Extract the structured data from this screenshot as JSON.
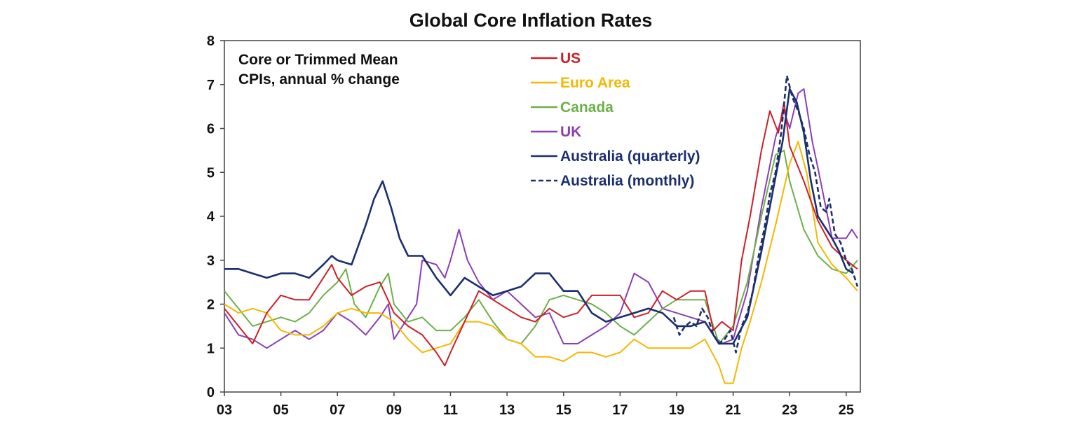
{
  "chart_data": {
    "type": "line",
    "title": "Global Core Inflation Rates",
    "note": [
      "Core or Trimmed Mean",
      "CPIs, annual % change"
    ],
    "xlabel": "",
    "ylabel": "",
    "xlim": [
      2003,
      2025.5
    ],
    "ylim": [
      0,
      8
    ],
    "yticks": [
      0,
      1,
      2,
      3,
      4,
      5,
      6,
      7,
      8
    ],
    "xticks": [
      2003,
      2005,
      2007,
      2009,
      2011,
      2013,
      2015,
      2017,
      2019,
      2021,
      2023,
      2025
    ],
    "xtick_labels": [
      "03",
      "05",
      "07",
      "09",
      "11",
      "13",
      "15",
      "17",
      "19",
      "21",
      "23",
      "25"
    ],
    "grid": false,
    "legend_position": "top-center",
    "series": [
      {
        "name": "US",
        "color": "#cc1f27",
        "dash": "solid",
        "points": [
          [
            2003.0,
            1.9
          ],
          [
            2003.5,
            1.5
          ],
          [
            2004.0,
            1.1
          ],
          [
            2004.5,
            1.8
          ],
          [
            2005.0,
            2.2
          ],
          [
            2005.5,
            2.1
          ],
          [
            2006.0,
            2.1
          ],
          [
            2006.5,
            2.6
          ],
          [
            2006.8,
            2.9
          ],
          [
            2007.0,
            2.6
          ],
          [
            2007.5,
            2.2
          ],
          [
            2008.0,
            2.4
          ],
          [
            2008.5,
            2.5
          ],
          [
            2009.0,
            1.8
          ],
          [
            2009.5,
            1.5
          ],
          [
            2010.0,
            1.3
          ],
          [
            2010.5,
            0.9
          ],
          [
            2010.8,
            0.6
          ],
          [
            2011.0,
            0.9
          ],
          [
            2011.5,
            1.6
          ],
          [
            2012.0,
            2.3
          ],
          [
            2012.5,
            2.1
          ],
          [
            2013.0,
            1.9
          ],
          [
            2013.5,
            1.7
          ],
          [
            2014.0,
            1.6
          ],
          [
            2014.5,
            1.9
          ],
          [
            2015.0,
            1.7
          ],
          [
            2015.5,
            1.8
          ],
          [
            2016.0,
            2.2
          ],
          [
            2016.5,
            2.2
          ],
          [
            2017.0,
            2.2
          ],
          [
            2017.5,
            1.7
          ],
          [
            2018.0,
            1.8
          ],
          [
            2018.5,
            2.3
          ],
          [
            2019.0,
            2.1
          ],
          [
            2019.5,
            2.3
          ],
          [
            2020.0,
            2.3
          ],
          [
            2020.3,
            1.4
          ],
          [
            2020.6,
            1.6
          ],
          [
            2021.0,
            1.4
          ],
          [
            2021.3,
            3.0
          ],
          [
            2021.6,
            4.0
          ],
          [
            2022.0,
            5.5
          ],
          [
            2022.3,
            6.4
          ],
          [
            2022.6,
            5.9
          ],
          [
            2022.8,
            6.6
          ],
          [
            2023.0,
            5.6
          ],
          [
            2023.5,
            4.8
          ],
          [
            2024.0,
            3.9
          ],
          [
            2024.5,
            3.3
          ],
          [
            2025.0,
            3.0
          ],
          [
            2025.4,
            2.8
          ]
        ]
      },
      {
        "name": "Euro Area",
        "color": "#f5b700",
        "dash": "solid",
        "points": [
          [
            2003.0,
            2.0
          ],
          [
            2003.5,
            1.8
          ],
          [
            2004.0,
            1.9
          ],
          [
            2004.5,
            1.8
          ],
          [
            2005.0,
            1.4
          ],
          [
            2005.5,
            1.3
          ],
          [
            2006.0,
            1.3
          ],
          [
            2006.5,
            1.5
          ],
          [
            2007.0,
            1.8
          ],
          [
            2007.5,
            1.9
          ],
          [
            2008.0,
            1.8
          ],
          [
            2008.5,
            1.8
          ],
          [
            2009.0,
            1.6
          ],
          [
            2009.5,
            1.2
          ],
          [
            2010.0,
            0.9
          ],
          [
            2010.5,
            1.0
          ],
          [
            2011.0,
            1.1
          ],
          [
            2011.5,
            1.6
          ],
          [
            2012.0,
            1.6
          ],
          [
            2012.5,
            1.5
          ],
          [
            2013.0,
            1.2
          ],
          [
            2013.5,
            1.1
          ],
          [
            2014.0,
            0.8
          ],
          [
            2014.5,
            0.8
          ],
          [
            2015.0,
            0.7
          ],
          [
            2015.5,
            0.9
          ],
          [
            2016.0,
            0.9
          ],
          [
            2016.5,
            0.8
          ],
          [
            2017.0,
            0.9
          ],
          [
            2017.5,
            1.2
          ],
          [
            2018.0,
            1.0
          ],
          [
            2018.5,
            1.0
          ],
          [
            2019.0,
            1.0
          ],
          [
            2019.5,
            1.0
          ],
          [
            2020.0,
            1.2
          ],
          [
            2020.5,
            0.6
          ],
          [
            2020.7,
            0.2
          ],
          [
            2021.0,
            0.2
          ],
          [
            2021.3,
            1.0
          ],
          [
            2021.6,
            1.6
          ],
          [
            2022.0,
            2.5
          ],
          [
            2022.5,
            3.8
          ],
          [
            2023.0,
            5.2
          ],
          [
            2023.3,
            5.7
          ],
          [
            2023.6,
            5.0
          ],
          [
            2024.0,
            3.4
          ],
          [
            2024.5,
            2.9
          ],
          [
            2025.0,
            2.6
          ],
          [
            2025.4,
            2.3
          ]
        ]
      },
      {
        "name": "Canada",
        "color": "#6eb048",
        "dash": "solid",
        "points": [
          [
            2003.0,
            2.3
          ],
          [
            2003.5,
            1.9
          ],
          [
            2004.0,
            1.5
          ],
          [
            2004.5,
            1.6
          ],
          [
            2005.0,
            1.7
          ],
          [
            2005.5,
            1.6
          ],
          [
            2006.0,
            1.8
          ],
          [
            2006.5,
            2.2
          ],
          [
            2007.0,
            2.5
          ],
          [
            2007.3,
            2.8
          ],
          [
            2007.6,
            2.0
          ],
          [
            2008.0,
            1.7
          ],
          [
            2008.5,
            2.4
          ],
          [
            2008.8,
            2.7
          ],
          [
            2009.0,
            2.0
          ],
          [
            2009.5,
            1.6
          ],
          [
            2010.0,
            1.7
          ],
          [
            2010.5,
            1.4
          ],
          [
            2011.0,
            1.4
          ],
          [
            2011.5,
            1.7
          ],
          [
            2012.0,
            2.1
          ],
          [
            2012.5,
            1.6
          ],
          [
            2013.0,
            1.2
          ],
          [
            2013.5,
            1.1
          ],
          [
            2014.0,
            1.5
          ],
          [
            2014.5,
            2.1
          ],
          [
            2015.0,
            2.2
          ],
          [
            2015.5,
            2.1
          ],
          [
            2016.0,
            2.0
          ],
          [
            2016.5,
            1.8
          ],
          [
            2017.0,
            1.5
          ],
          [
            2017.5,
            1.3
          ],
          [
            2018.0,
            1.6
          ],
          [
            2018.5,
            1.9
          ],
          [
            2019.0,
            2.1
          ],
          [
            2019.5,
            2.1
          ],
          [
            2020.0,
            2.1
          ],
          [
            2020.5,
            1.1
          ],
          [
            2021.0,
            1.5
          ],
          [
            2021.5,
            2.5
          ],
          [
            2022.0,
            4.0
          ],
          [
            2022.5,
            5.4
          ],
          [
            2022.8,
            5.5
          ],
          [
            2023.0,
            4.8
          ],
          [
            2023.5,
            3.7
          ],
          [
            2024.0,
            3.1
          ],
          [
            2024.5,
            2.8
          ],
          [
            2025.0,
            2.7
          ],
          [
            2025.4,
            3.0
          ]
        ]
      },
      {
        "name": "UK",
        "color": "#8b3fb5",
        "dash": "solid",
        "points": [
          [
            2003.0,
            1.8
          ],
          [
            2003.5,
            1.3
          ],
          [
            2004.0,
            1.2
          ],
          [
            2004.5,
            1.0
          ],
          [
            2005.0,
            1.2
          ],
          [
            2005.5,
            1.4
          ],
          [
            2006.0,
            1.2
          ],
          [
            2006.5,
            1.4
          ],
          [
            2007.0,
            1.8
          ],
          [
            2007.5,
            1.6
          ],
          [
            2008.0,
            1.3
          ],
          [
            2008.5,
            1.7
          ],
          [
            2008.8,
            2.0
          ],
          [
            2009.0,
            1.2
          ],
          [
            2009.5,
            1.7
          ],
          [
            2009.8,
            2.0
          ],
          [
            2010.0,
            3.0
          ],
          [
            2010.5,
            2.9
          ],
          [
            2010.8,
            2.6
          ],
          [
            2011.0,
            3.0
          ],
          [
            2011.3,
            3.7
          ],
          [
            2011.6,
            3.0
          ],
          [
            2012.0,
            2.5
          ],
          [
            2012.5,
            2.1
          ],
          [
            2013.0,
            2.3
          ],
          [
            2013.5,
            2.0
          ],
          [
            2014.0,
            1.7
          ],
          [
            2014.5,
            1.8
          ],
          [
            2015.0,
            1.1
          ],
          [
            2015.5,
            1.1
          ],
          [
            2016.0,
            1.3
          ],
          [
            2016.5,
            1.5
          ],
          [
            2017.0,
            1.8
          ],
          [
            2017.5,
            2.7
          ],
          [
            2018.0,
            2.5
          ],
          [
            2018.5,
            1.9
          ],
          [
            2019.0,
            1.8
          ],
          [
            2019.5,
            1.7
          ],
          [
            2020.0,
            1.6
          ],
          [
            2020.3,
            1.3
          ],
          [
            2020.6,
            1.1
          ],
          [
            2021.0,
            1.2
          ],
          [
            2021.5,
            2.3
          ],
          [
            2022.0,
            4.2
          ],
          [
            2022.5,
            5.8
          ],
          [
            2022.8,
            6.4
          ],
          [
            2023.0,
            6.0
          ],
          [
            2023.3,
            6.8
          ],
          [
            2023.5,
            6.9
          ],
          [
            2023.8,
            5.7
          ],
          [
            2024.0,
            5.1
          ],
          [
            2024.5,
            3.5
          ],
          [
            2025.0,
            3.5
          ],
          [
            2025.2,
            3.7
          ],
          [
            2025.4,
            3.5
          ]
        ]
      },
      {
        "name": "Australia (quarterly)",
        "color": "#1b2f6e",
        "dash": "solid",
        "points": [
          [
            2003.0,
            2.8
          ],
          [
            2003.5,
            2.8
          ],
          [
            2004.0,
            2.7
          ],
          [
            2004.5,
            2.6
          ],
          [
            2005.0,
            2.7
          ],
          [
            2005.5,
            2.7
          ],
          [
            2006.0,
            2.6
          ],
          [
            2006.5,
            2.9
          ],
          [
            2006.8,
            3.1
          ],
          [
            2007.0,
            3.0
          ],
          [
            2007.5,
            2.9
          ],
          [
            2008.0,
            3.8
          ],
          [
            2008.3,
            4.4
          ],
          [
            2008.6,
            4.8
          ],
          [
            2008.9,
            4.2
          ],
          [
            2009.2,
            3.5
          ],
          [
            2009.5,
            3.1
          ],
          [
            2010.0,
            3.1
          ],
          [
            2010.5,
            2.6
          ],
          [
            2011.0,
            2.2
          ],
          [
            2011.5,
            2.6
          ],
          [
            2012.0,
            2.4
          ],
          [
            2012.5,
            2.2
          ],
          [
            2013.0,
            2.3
          ],
          [
            2013.5,
            2.4
          ],
          [
            2014.0,
            2.7
          ],
          [
            2014.5,
            2.7
          ],
          [
            2015.0,
            2.3
          ],
          [
            2015.5,
            2.3
          ],
          [
            2016.0,
            1.8
          ],
          [
            2016.5,
            1.6
          ],
          [
            2017.0,
            1.7
          ],
          [
            2017.5,
            1.8
          ],
          [
            2018.0,
            1.9
          ],
          [
            2018.5,
            1.8
          ],
          [
            2019.0,
            1.5
          ],
          [
            2019.5,
            1.5
          ],
          [
            2020.0,
            1.6
          ],
          [
            2020.5,
            1.1
          ],
          [
            2021.0,
            1.1
          ],
          [
            2021.5,
            1.7
          ],
          [
            2022.0,
            3.2
          ],
          [
            2022.5,
            4.9
          ],
          [
            2022.75,
            5.7
          ],
          [
            2023.0,
            6.9
          ],
          [
            2023.25,
            6.6
          ],
          [
            2023.5,
            5.9
          ],
          [
            2023.75,
            4.8
          ],
          [
            2024.0,
            4.0
          ],
          [
            2024.5,
            3.5
          ],
          [
            2024.75,
            3.2
          ],
          [
            2025.0,
            2.8
          ],
          [
            2025.25,
            2.7
          ]
        ]
      },
      {
        "name": "Australia (monthly)",
        "color": "#1b2f6e",
        "dash": "dashed",
        "points": [
          [
            2018.9,
            1.7
          ],
          [
            2019.1,
            1.3
          ],
          [
            2019.3,
            1.5
          ],
          [
            2019.5,
            1.6
          ],
          [
            2019.7,
            1.5
          ],
          [
            2019.9,
            1.9
          ],
          [
            2020.1,
            1.7
          ],
          [
            2020.3,
            1.3
          ],
          [
            2020.5,
            1.1
          ],
          [
            2020.7,
            1.2
          ],
          [
            2020.9,
            1.4
          ],
          [
            2021.1,
            0.9
          ],
          [
            2021.3,
            1.5
          ],
          [
            2021.5,
            1.8
          ],
          [
            2021.7,
            2.3
          ],
          [
            2021.9,
            3.1
          ],
          [
            2022.1,
            3.7
          ],
          [
            2022.3,
            4.5
          ],
          [
            2022.5,
            5.0
          ],
          [
            2022.7,
            5.9
          ],
          [
            2022.9,
            7.2
          ],
          [
            2023.1,
            6.7
          ],
          [
            2023.3,
            6.4
          ],
          [
            2023.5,
            6.0
          ],
          [
            2023.7,
            5.4
          ],
          [
            2023.9,
            5.0
          ],
          [
            2024.1,
            4.2
          ],
          [
            2024.3,
            4.1
          ],
          [
            2024.4,
            4.4
          ],
          [
            2024.6,
            3.6
          ],
          [
            2024.8,
            3.4
          ],
          [
            2025.0,
            3.0
          ],
          [
            2025.2,
            2.8
          ],
          [
            2025.4,
            2.4
          ]
        ]
      }
    ]
  }
}
